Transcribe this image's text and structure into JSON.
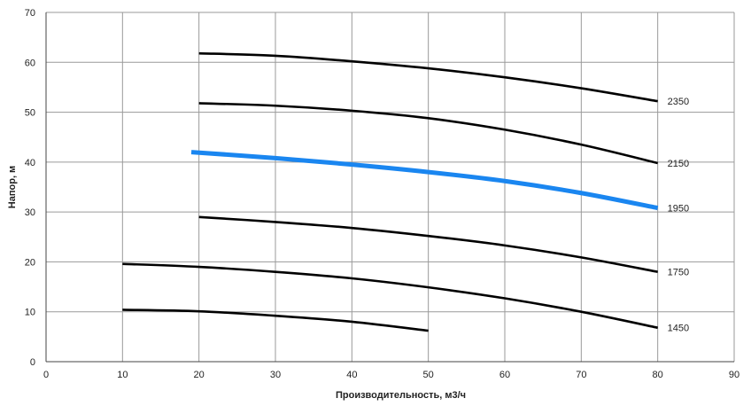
{
  "chart_data": {
    "type": "line",
    "title": "",
    "xlabel": "Производительность,  м3/ч",
    "ylabel": "Напор, м",
    "xlim": [
      0,
      90
    ],
    "ylim": [
      0,
      70
    ],
    "x_ticks": [
      0,
      10,
      20,
      30,
      40,
      50,
      60,
      70,
      80,
      90
    ],
    "y_ticks": [
      0,
      10,
      20,
      30,
      40,
      50,
      60,
      70
    ],
    "grid": true,
    "legend": "none",
    "series": [
      {
        "name": "2350",
        "color": "#000000",
        "points": [
          [
            20,
            61.8
          ],
          [
            30,
            61.3
          ],
          [
            40,
            60.2
          ],
          [
            50,
            58.8
          ],
          [
            60,
            57.0
          ],
          [
            70,
            54.8
          ],
          [
            80,
            52.2
          ]
        ]
      },
      {
        "name": "2150",
        "color": "#000000",
        "points": [
          [
            20,
            51.8
          ],
          [
            30,
            51.3
          ],
          [
            40,
            50.3
          ],
          [
            50,
            48.8
          ],
          [
            60,
            46.5
          ],
          [
            70,
            43.5
          ],
          [
            80,
            39.8
          ]
        ]
      },
      {
        "name": "1950",
        "color": "#1a86f0",
        "highlight": true,
        "points": [
          [
            19,
            42.0
          ],
          [
            30,
            40.8
          ],
          [
            40,
            39.5
          ],
          [
            50,
            38.0
          ],
          [
            60,
            36.2
          ],
          [
            70,
            33.8
          ],
          [
            80,
            30.8
          ]
        ]
      },
      {
        "name": "1750",
        "color": "#000000",
        "points": [
          [
            20,
            29.0
          ],
          [
            30,
            28.0
          ],
          [
            40,
            26.8
          ],
          [
            50,
            25.2
          ],
          [
            60,
            23.3
          ],
          [
            70,
            20.9
          ],
          [
            80,
            18.0
          ]
        ]
      },
      {
        "name": "1450",
        "color": "#000000",
        "points": [
          [
            10,
            19.6
          ],
          [
            20,
            19.0
          ],
          [
            30,
            18.0
          ],
          [
            40,
            16.7
          ],
          [
            50,
            14.9
          ],
          [
            60,
            12.7
          ],
          [
            70,
            10.0
          ],
          [
            80,
            6.8
          ]
        ]
      },
      {
        "name": "",
        "color": "#000000",
        "points": [
          [
            10,
            10.4
          ],
          [
            20,
            10.1
          ],
          [
            30,
            9.2
          ],
          [
            40,
            8.0
          ],
          [
            50,
            6.2
          ]
        ]
      }
    ]
  }
}
